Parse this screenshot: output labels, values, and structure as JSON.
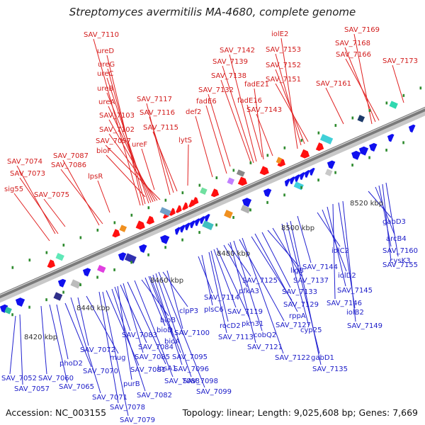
{
  "title": "Streptomyces avermitilis MA-4680, complete genome",
  "accession_text": "Accession: NC_003155",
  "topology_text": "Topology: linear; Length: 9,025,608 bp; Genes: 7,669",
  "colors": {
    "forward_strand": "#ff1010",
    "reverse_strand": "#1010ee",
    "top_leader": "#e02020",
    "bottom_leader": "#2020d0",
    "axis": "#7a7a7a"
  },
  "scale_labels": [
    "8420 kbp",
    "8440 kbp",
    "8460 kbp",
    "8480 kbp",
    "8500 kbp",
    "8520 kbp"
  ],
  "top_genes": [
    "SAV_7110",
    "ureD",
    "ureG",
    "ureC",
    "ureB",
    "ureA",
    "SAV_7103",
    "SAV_7102",
    "SAV_7097",
    "bioF",
    "SAV_7117",
    "SAV_7116",
    "SAV_7115",
    "ureF",
    "lytS",
    "def2",
    "fadE6",
    "SAV_7132",
    "SAV_7138",
    "SAV_7139",
    "SAV_7142",
    "fadE21",
    "fadE16",
    "SAV_7143",
    "iolE2",
    "SAV_7153",
    "SAV_7152",
    "SAV_7151",
    "SAV_7169",
    "SAV_7168",
    "SAV_7166",
    "SAV_7173",
    "SAV_7161",
    "SAV_7074",
    "SAV_7073",
    "sig55",
    "SAV_7087",
    "SAV_7086",
    "SAV_7075",
    "lpsR"
  ],
  "bottom_genes": [
    "SAV_7052",
    "SAV_7057",
    "SAV_7060",
    "SAV_7065",
    "phoD2",
    "SAV_7070",
    "SAV_7071",
    "SAV_7072",
    "mug",
    "SAV_7078",
    "SAV_7079",
    "SAV_7081",
    "SAV_7082",
    "SAV_7083",
    "purB",
    "SAV_7084",
    "SAV_7085",
    "lpsA1",
    "SAV_7088",
    "bioB",
    "bioD",
    "bioA",
    "clpP3",
    "SAV_7100",
    "SAV_7095",
    "SAV_7096",
    "SAV_7098",
    "SAV_7099",
    "SAV_7114",
    "plsC6",
    "SAV_7113",
    "rocD2",
    "SAV_7119",
    "pkn31",
    "pfkA3",
    "SAV_7125",
    "SAV_7121",
    "cobQ2",
    "SAV_7127",
    "SAV_7122",
    "SAV_7129",
    "rppA",
    "SAV_7133",
    "ligB",
    "SAV_7137",
    "cyp25",
    "gabD1",
    "SAV_7135",
    "SAV_7144",
    "iolC2",
    "iolD2",
    "SAV_7145",
    "SAV_7146",
    "iolB2",
    "SAV_7149",
    "gabD3",
    "arcB4",
    "SAV_7160",
    "SAV_7155",
    "cysK3"
  ]
}
